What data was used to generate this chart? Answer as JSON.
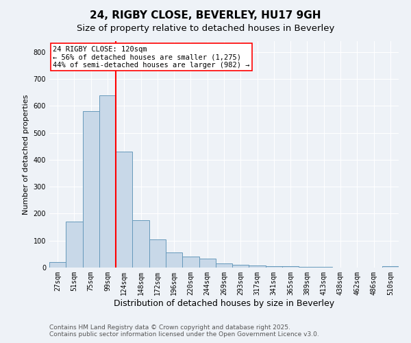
{
  "title1": "24, RIGBY CLOSE, BEVERLEY, HU17 9GH",
  "title2": "Size of property relative to detached houses in Beverley",
  "xlabel": "Distribution of detached houses by size in Beverley",
  "ylabel": "Number of detached properties",
  "categories": [
    "27sqm",
    "51sqm",
    "75sqm",
    "99sqm",
    "124sqm",
    "148sqm",
    "172sqm",
    "196sqm",
    "220sqm",
    "244sqm",
    "269sqm",
    "293sqm",
    "317sqm",
    "341sqm",
    "365sqm",
    "389sqm",
    "413sqm",
    "438sqm",
    "462sqm",
    "486sqm",
    "510sqm"
  ],
  "values": [
    20,
    170,
    580,
    640,
    430,
    175,
    105,
    57,
    40,
    32,
    15,
    10,
    8,
    5,
    4,
    3,
    2,
    1,
    1,
    1,
    5
  ],
  "bar_color": "#c8d8e8",
  "bar_edge_color": "#6699bb",
  "vline_color": "red",
  "vline_x": 3.5,
  "annotation_title": "24 RIGBY CLOSE: 120sqm",
  "annotation_line1": "← 56% of detached houses are smaller (1,275)",
  "annotation_line2": "44% of semi-detached houses are larger (982) →",
  "annotation_box_edgecolor": "red",
  "annotation_bg_color": "white",
  "ylim": [
    0,
    840
  ],
  "yticks": [
    0,
    100,
    200,
    300,
    400,
    500,
    600,
    700,
    800
  ],
  "footer1": "Contains HM Land Registry data © Crown copyright and database right 2025.",
  "footer2": "Contains public sector information licensed under the Open Government Licence v3.0.",
  "background_color": "#eef2f7",
  "grid_color": "white",
  "title1_fontsize": 11,
  "title2_fontsize": 9.5,
  "xlabel_fontsize": 9,
  "ylabel_fontsize": 8,
  "tick_fontsize": 7,
  "annotation_fontsize": 7.5,
  "footer_fontsize": 6.5
}
